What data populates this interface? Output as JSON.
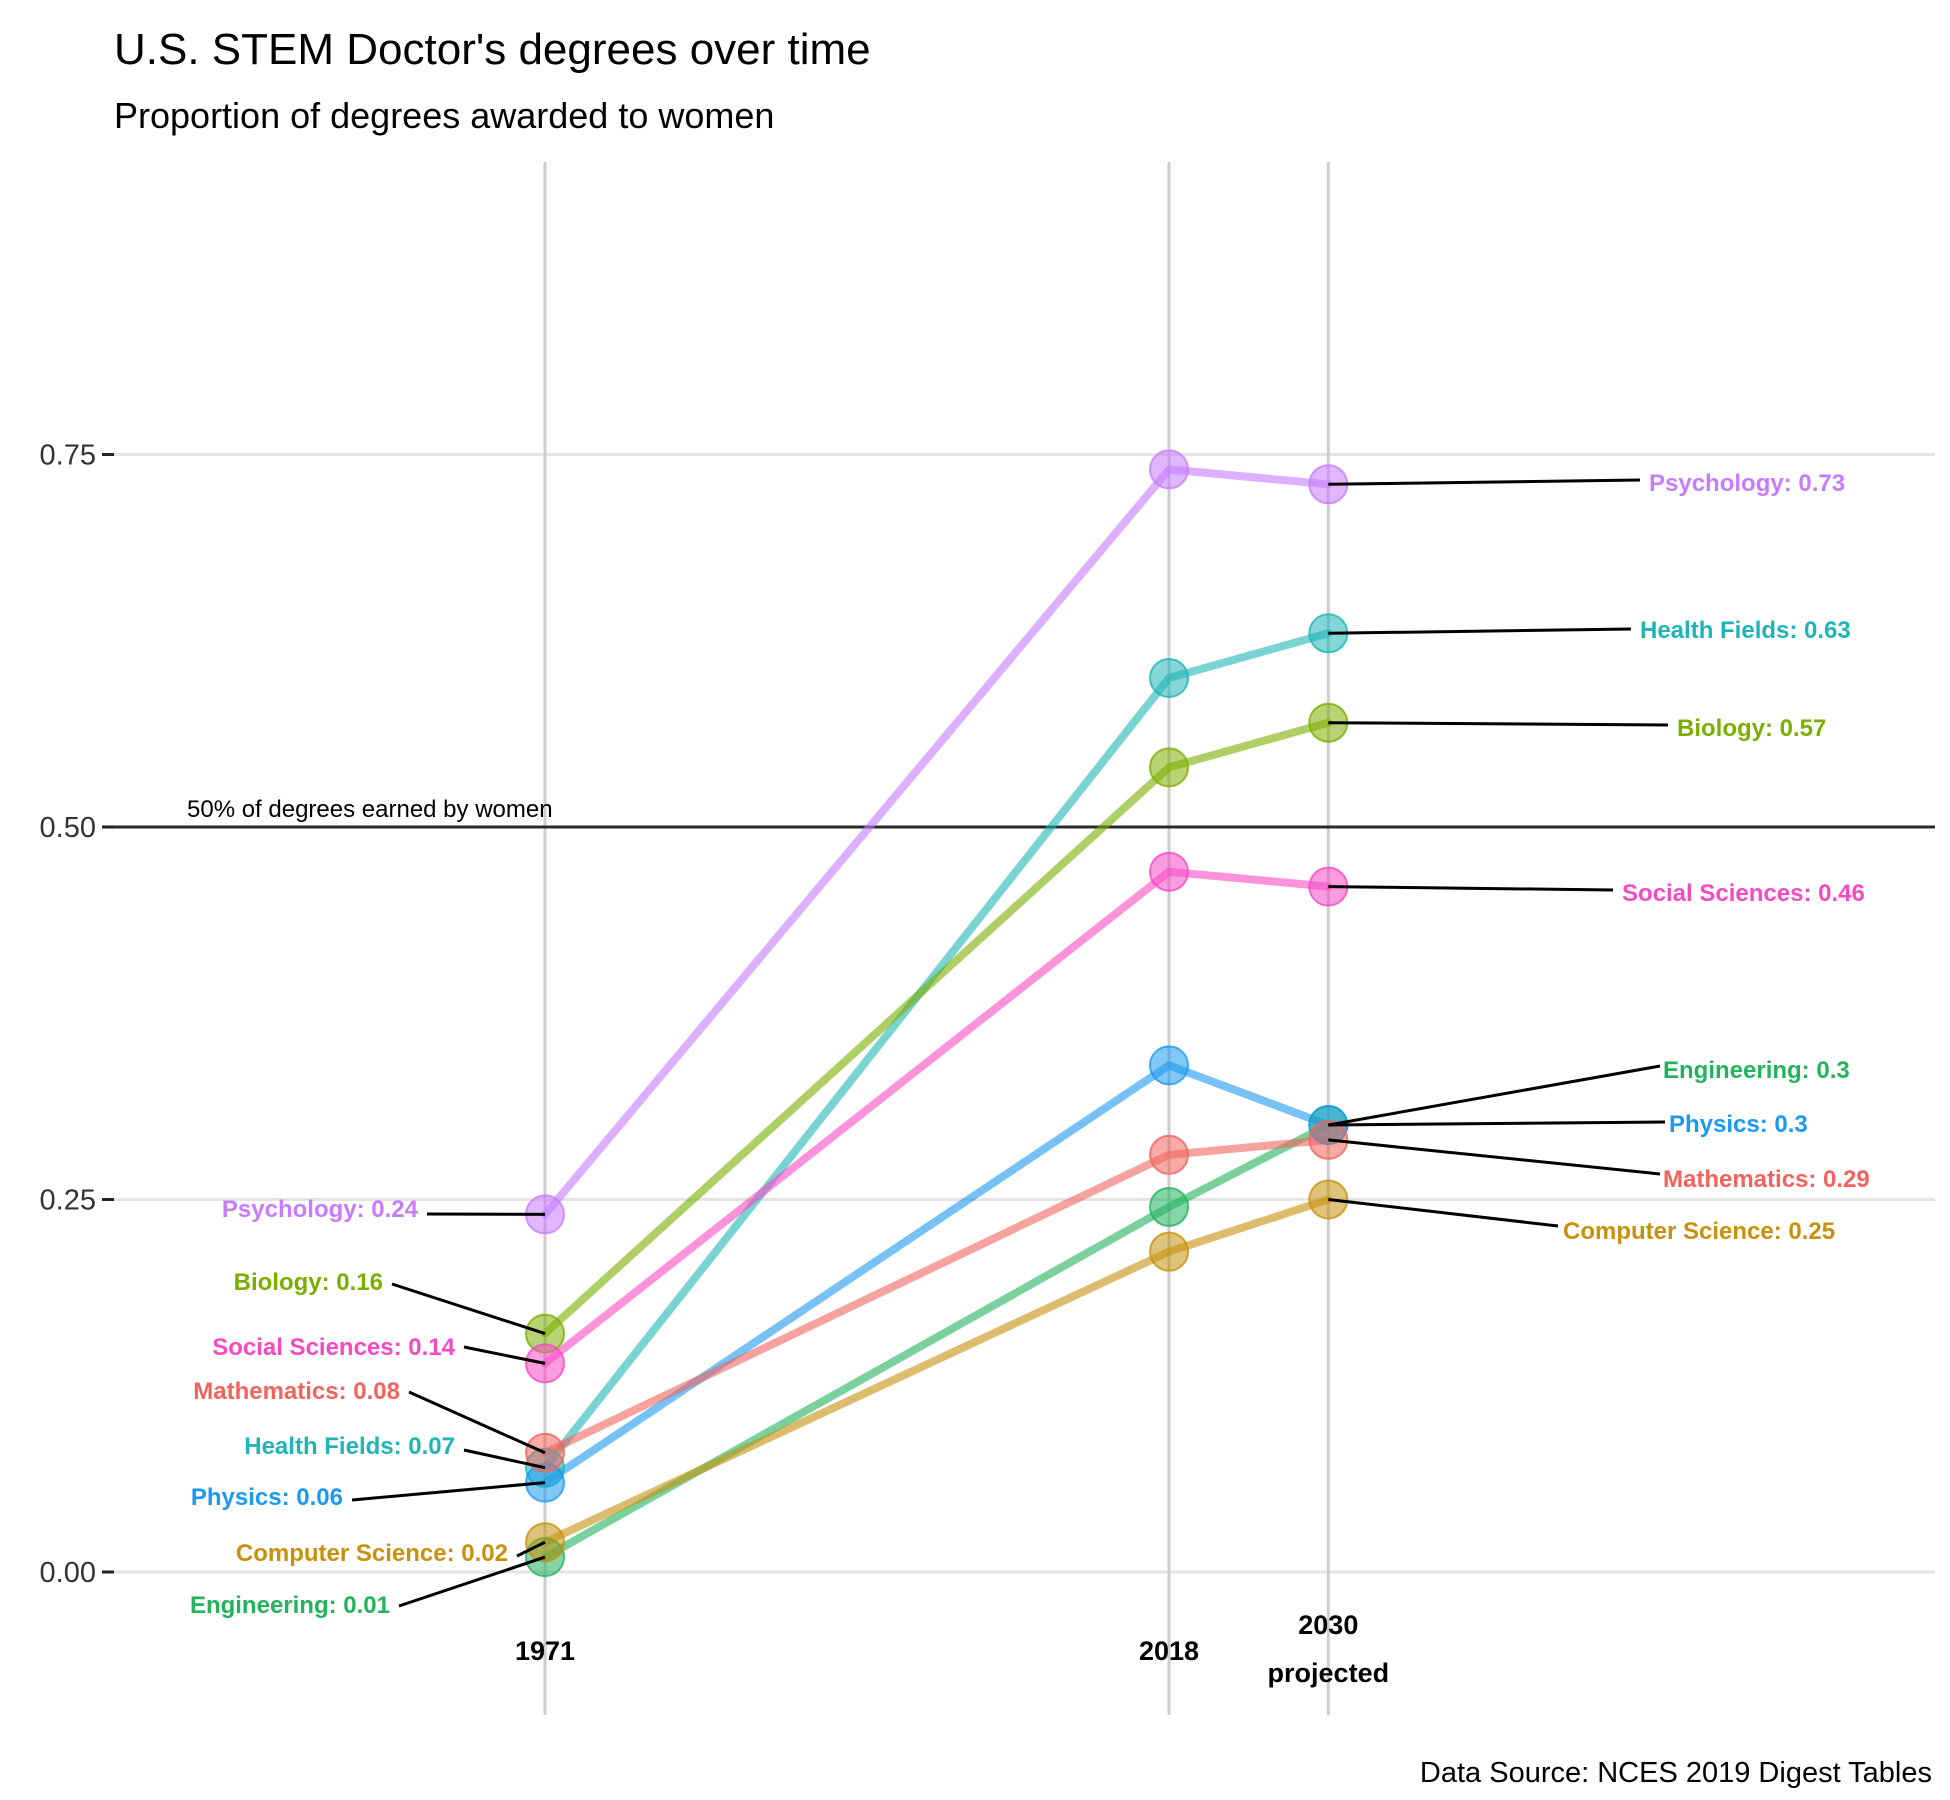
{
  "chart_data": {
    "type": "line",
    "title": "U.S. STEM Doctor's degrees over time",
    "subtitle": "Proportion of degrees awarded to women",
    "caption": "Data Source: NCES 2019 Digest Tables",
    "reference_line": {
      "y": 0.5,
      "label": "50% of degrees earned by women"
    },
    "x": [
      {
        "value": 1971,
        "label": "1971",
        "sublabel": ""
      },
      {
        "value": 2018,
        "label": "2018",
        "sublabel": ""
      },
      {
        "value": 2030,
        "label": "2030",
        "sublabel": "projected"
      }
    ],
    "ylim": [
      -0.09,
      0.95
    ],
    "yticks": [
      {
        "value": 0,
        "label": "0.00"
      },
      {
        "value": 0.25,
        "label": "0.25"
      },
      {
        "value": 0.5,
        "label": "0.50"
      },
      {
        "value": 0.75,
        "label": "0.75"
      }
    ],
    "grid": true,
    "legend": "none",
    "series": [
      {
        "name": "Psychology",
        "color": "#c77cff",
        "values": [
          0.24,
          0.74,
          0.73
        ],
        "start_label": "Psychology: 0.24",
        "end_label": "Psychology: 0.73"
      },
      {
        "name": "Health Fields",
        "color": "#1fb5b6",
        "values": [
          0.07,
          0.6,
          0.63
        ],
        "start_label": "Health Fields: 0.07",
        "end_label": "Health Fields: 0.63"
      },
      {
        "name": "Biology",
        "color": "#7cae00",
        "values": [
          0.16,
          0.54,
          0.57
        ],
        "start_label": "Biology: 0.16",
        "end_label": "Biology: 0.57"
      },
      {
        "name": "Social Sciences",
        "color": "#f64ac5",
        "values": [
          0.14,
          0.47,
          0.46
        ],
        "start_label": "Social Sciences: 0.14",
        "end_label": "Social Sciences: 0.46"
      },
      {
        "name": "Engineering",
        "color": "#22b35c",
        "values": [
          0.01,
          0.245,
          0.3
        ],
        "start_label": "Engineering: 0.01",
        "end_label": "Engineering: 0.3"
      },
      {
        "name": "Physics",
        "color": "#1a9af0",
        "values": [
          0.06,
          0.34,
          0.3
        ],
        "start_label": "Physics: 0.06",
        "end_label": "Physics: 0.3"
      },
      {
        "name": "Mathematics",
        "color": "#f0645d",
        "values": [
          0.08,
          0.28,
          0.29
        ],
        "start_label": "Mathematics: 0.08",
        "end_label": "Mathematics: 0.29"
      },
      {
        "name": "Computer Science",
        "color": "#c7910c",
        "values": [
          0.02,
          0.215,
          0.25
        ],
        "start_label": "Computer Science: 0.02",
        "end_label": "Computer Science: 0.25"
      }
    ]
  }
}
